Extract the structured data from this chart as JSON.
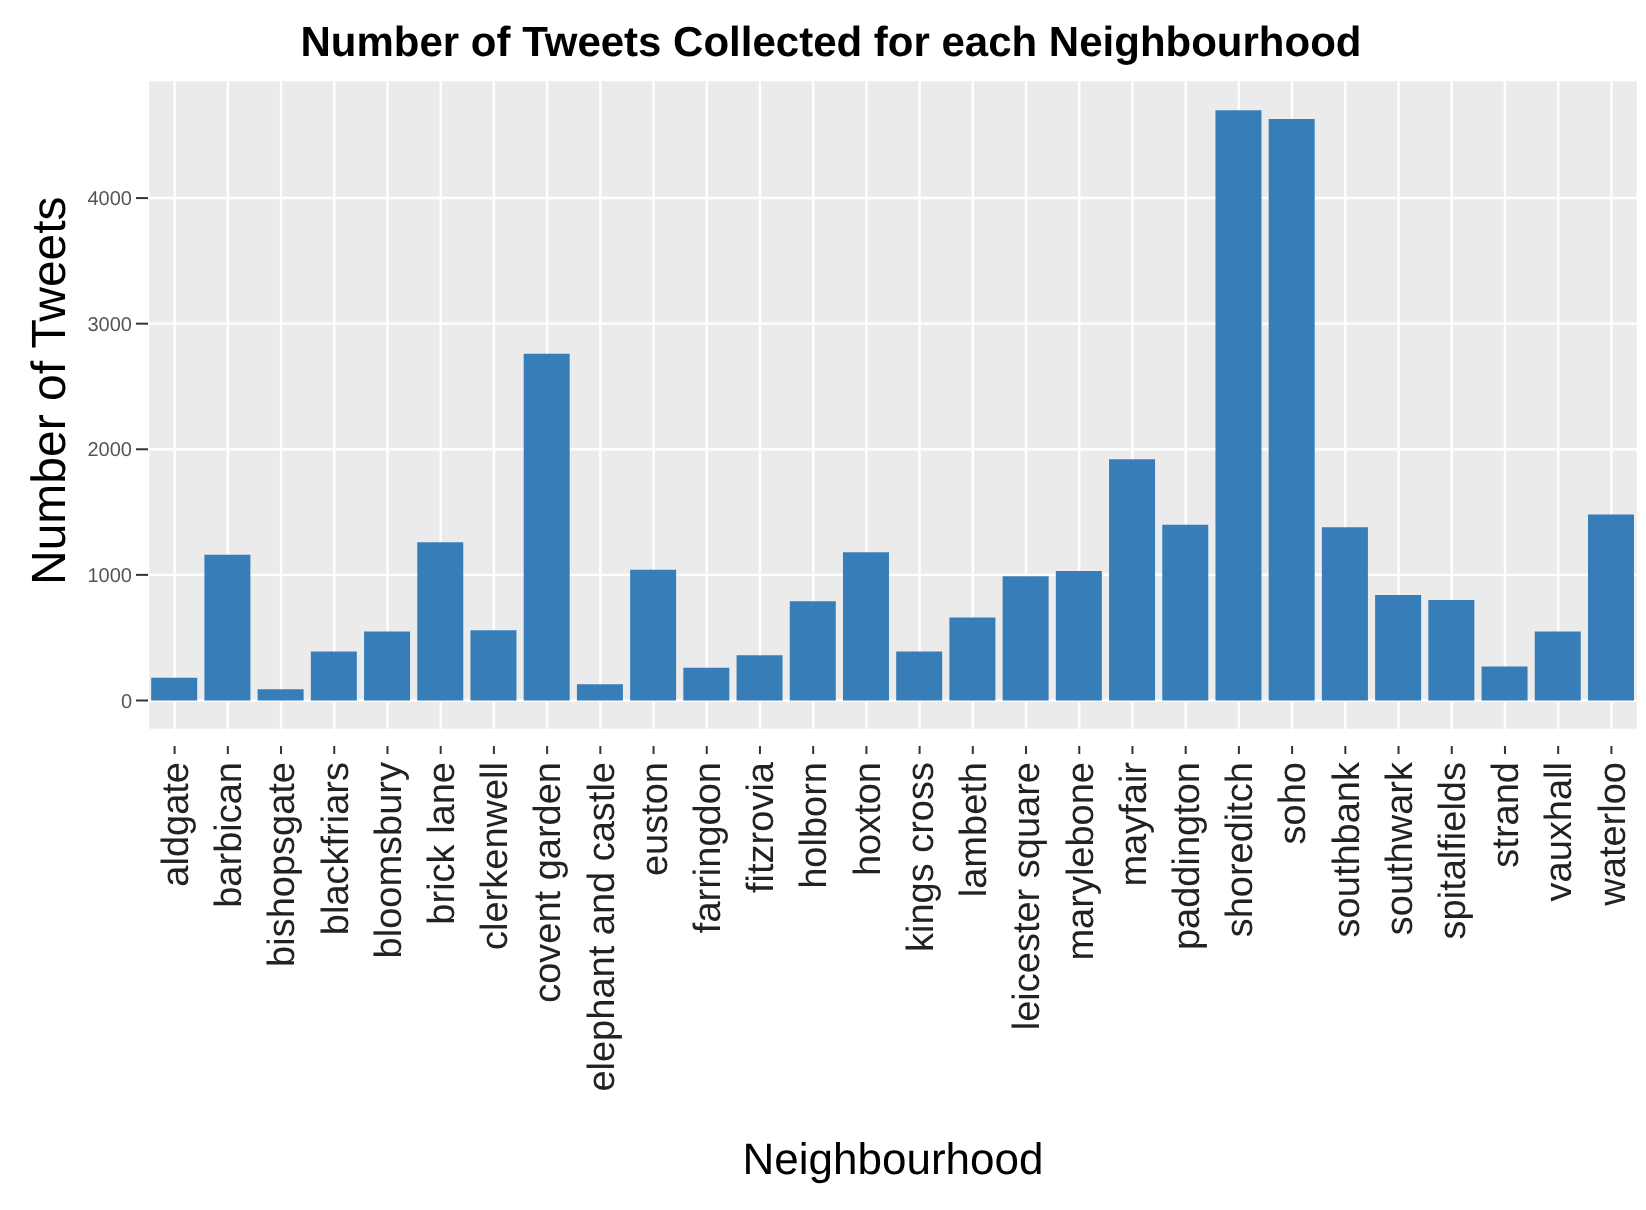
{
  "chart_data": {
    "type": "bar",
    "title": "Number of Tweets Collected for each Neighbourhood",
    "xlabel": "Neighbourhood",
    "ylabel": "Number of Tweets",
    "categories": [
      "aldgate",
      "barbican",
      "bishopsgate",
      "blackfriars",
      "bloomsbury",
      "brick lane",
      "clerkenwell",
      "covent garden",
      "elephant and castle",
      "euston",
      "farringdon",
      "fitzrovia",
      "holborn",
      "hoxton",
      "kings cross",
      "lambeth",
      "leicester square",
      "marylebone",
      "mayfair",
      "paddington",
      "shoreditch",
      "soho",
      "southbank",
      "southwark",
      "spitalfields",
      "strand",
      "vauxhall",
      "waterloo"
    ],
    "values": [
      180,
      1160,
      90,
      390,
      550,
      1260,
      560,
      2760,
      130,
      1040,
      260,
      360,
      790,
      1180,
      390,
      660,
      990,
      1030,
      1920,
      1400,
      4700,
      4630,
      1380,
      840,
      800,
      270,
      550,
      1480
    ],
    "color": "#377eb8",
    "ylim": [
      -235,
      4940
    ],
    "yticks": [
      0,
      1000,
      2000,
      3000,
      4000
    ],
    "grid": true
  }
}
